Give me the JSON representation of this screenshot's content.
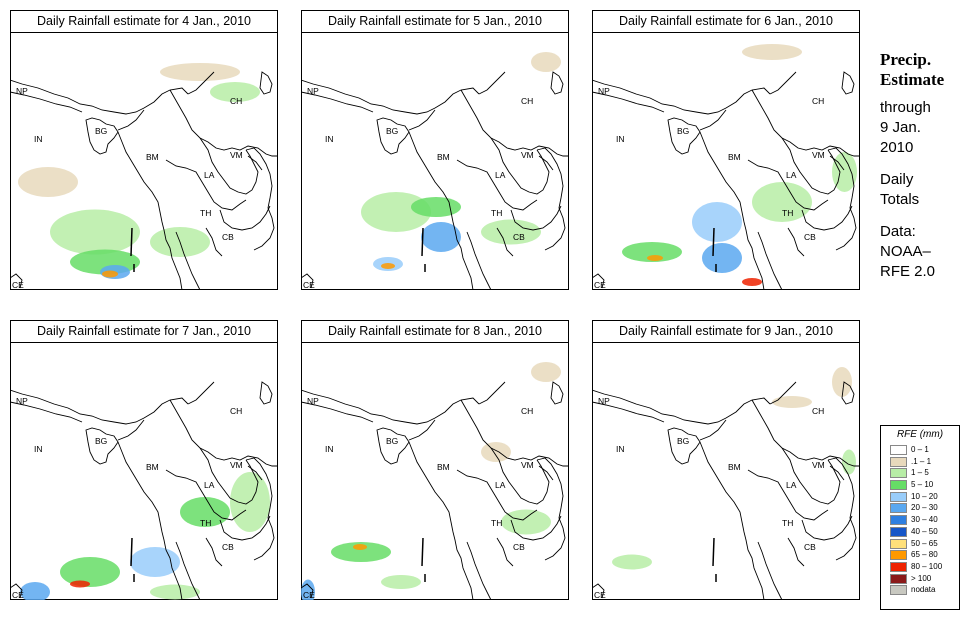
{
  "panels": [
    {
      "title": "Daily Rainfall estimate for  4 Jan., 2010"
    },
    {
      "title": "Daily Rainfall estimate for  5 Jan., 2010"
    },
    {
      "title": "Daily Rainfall estimate for  6 Jan., 2010"
    },
    {
      "title": "Daily Rainfall estimate for  7 Jan., 2010"
    },
    {
      "title": "Daily Rainfall estimate for  8 Jan., 2010"
    },
    {
      "title": "Daily Rainfall estimate for  9 Jan., 2010"
    }
  ],
  "country_labels": {
    "np": "NP",
    "in": "IN",
    "bg": "BG",
    "ch": "CH",
    "bm": "BM",
    "vm": "VM",
    "la": "LA",
    "th": "TH",
    "cb": "CB",
    "ce": "CE"
  },
  "side": {
    "title1": "Precip.",
    "title2": "Estimate",
    "through": "through",
    "date1": "9 Jan.",
    "date2": "2010",
    "daily1": "Daily",
    "daily2": "Totals",
    "data1": "Data:",
    "data2": "NOAA–",
    "data3": "RFE 2.0"
  },
  "legend": {
    "title": "RFE (mm)",
    "items": [
      {
        "label": "0 – 1",
        "color": "#ffffff"
      },
      {
        "label": ".1 – 1",
        "color": "#e8d9bc"
      },
      {
        "label": "1 – 5",
        "color": "#b7eda6"
      },
      {
        "label": "5 – 10",
        "color": "#66dd66"
      },
      {
        "label": "10 – 20",
        "color": "#99cdfa"
      },
      {
        "label": "20 – 30",
        "color": "#5aa8f0"
      },
      {
        "label": "30 – 40",
        "color": "#2f7fe0"
      },
      {
        "label": "40 – 50",
        "color": "#1656c8"
      },
      {
        "label": "50 – 65",
        "color": "#ffe07a"
      },
      {
        "label": "65 – 80",
        "color": "#ff9900"
      },
      {
        "label": "80 – 100",
        "color": "#ee2200"
      },
      {
        "label": "> 100",
        "color": "#8b1a1a"
      },
      {
        "label": "nodata",
        "color": "#c8c8c0"
      }
    ]
  }
}
